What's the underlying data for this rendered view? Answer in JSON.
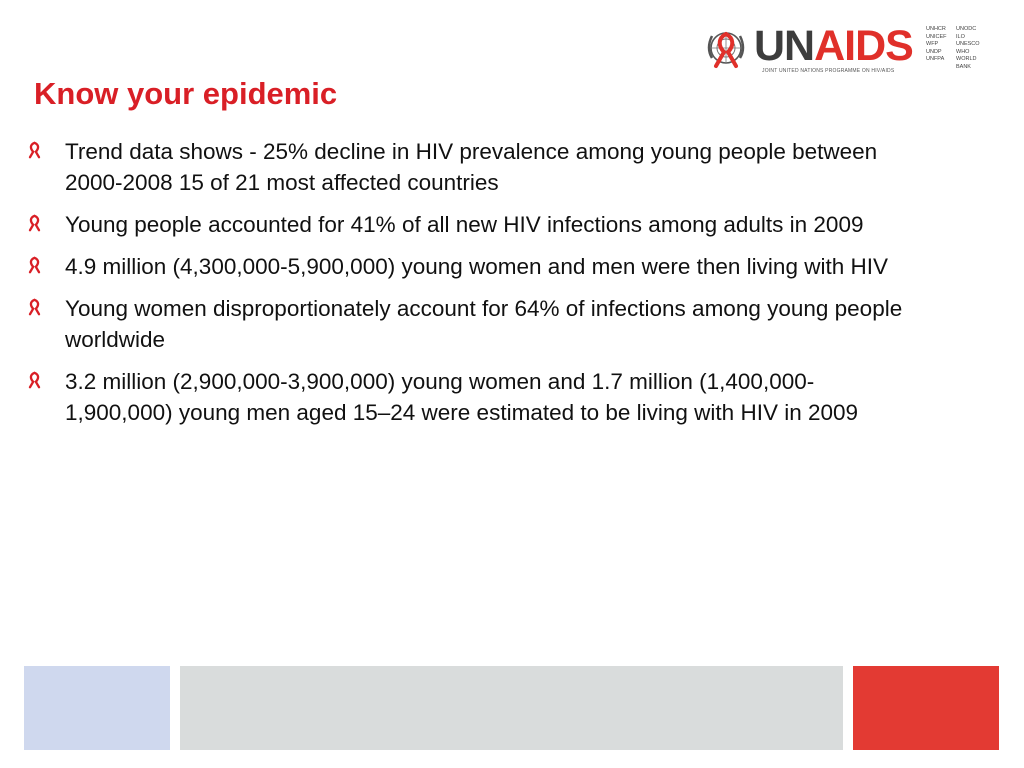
{
  "header": {
    "logo": {
      "word_un": "UN",
      "word_aids": "AIDS",
      "tagline": "JOINT UNITED NATIONS PROGRAMME ON HIV/AIDS",
      "cosponsors": [
        "UNHCR",
        "UNODC",
        "UNICEF",
        "ILO",
        "WFP",
        "UNESCO",
        "UNDP",
        "WHO",
        "UNFPA",
        "WORLD BANK"
      ]
    }
  },
  "slide": {
    "title": "Know your epidemic",
    "bullets": [
      "Trend data shows - 25% decline in HIV prevalence among young people between 2000-2008 15 of 21 most affected countries",
      "Young people accounted for 41% of all new HIV infections among adults in 2009",
      "4.9 million (4,300,000-5,900,000) young women and men were then living with HIV",
      "Young women disproportionately account for 64% of infections among young people worldwide",
      "3.2 million (2,900,000-3,900,000) young women and 1.7 million (1,400,000-1,900,000) young men aged 15–24 were estimated to be living with HIV in 2009"
    ]
  },
  "colors": {
    "accent_red": "#d91f26",
    "footer_blue": "#cfd8ee",
    "footer_grey": "#d9dcdc",
    "footer_red": "#e33a33"
  },
  "icons": {
    "bullet": "red-ribbon-icon",
    "emblem": "un-emblem-icon"
  }
}
